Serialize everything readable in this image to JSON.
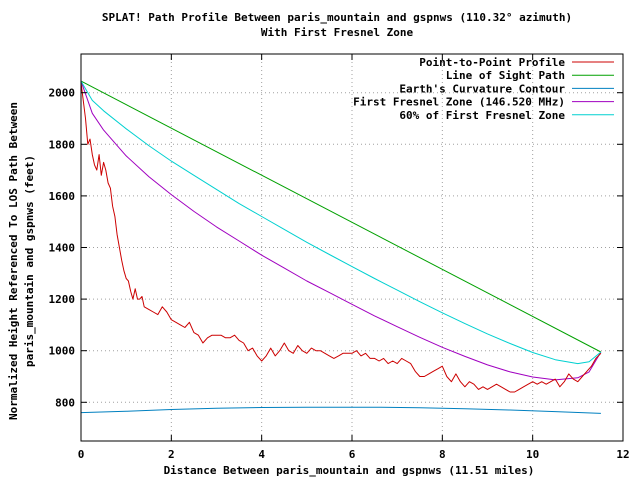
{
  "chart_data": {
    "type": "line",
    "title": "SPLAT! Path Profile Between paris_mountain and gspnws (110.32° azimuth)",
    "subtitle": "With First Fresnel Zone",
    "xlabel": "Distance Between paris_mountain and gspnws (11.51 miles)",
    "ylabel_line1": "Normalized Height Referenced To LOS Path Between",
    "ylabel_line2": "paris_mountain and gspnws (feet)",
    "xlim": [
      0,
      12
    ],
    "ylim": [
      650,
      2150
    ],
    "x_ticks": [
      0,
      2,
      4,
      6,
      8,
      10,
      12
    ],
    "y_ticks": [
      800,
      1000,
      1200,
      1400,
      1600,
      1800,
      2000
    ],
    "grid": true,
    "legend_position": "top-right",
    "series": [
      {
        "name": "Point-to-Point Profile",
        "color": "#cc0000",
        "points": [
          [
            0,
            2040
          ],
          [
            0.1,
            1900
          ],
          [
            0.15,
            1800
          ],
          [
            0.2,
            1820
          ],
          [
            0.25,
            1760
          ],
          [
            0.3,
            1720
          ],
          [
            0.35,
            1700
          ],
          [
            0.4,
            1760
          ],
          [
            0.45,
            1680
          ],
          [
            0.5,
            1730
          ],
          [
            0.55,
            1700
          ],
          [
            0.6,
            1650
          ],
          [
            0.65,
            1630
          ],
          [
            0.7,
            1560
          ],
          [
            0.75,
            1520
          ],
          [
            0.8,
            1450
          ],
          [
            0.85,
            1400
          ],
          [
            0.9,
            1350
          ],
          [
            0.95,
            1310
          ],
          [
            1.0,
            1280
          ],
          [
            1.05,
            1270
          ],
          [
            1.1,
            1230
          ],
          [
            1.15,
            1200
          ],
          [
            1.2,
            1240
          ],
          [
            1.25,
            1200
          ],
          [
            1.3,
            1200
          ],
          [
            1.35,
            1210
          ],
          [
            1.4,
            1170
          ],
          [
            1.5,
            1160
          ],
          [
            1.6,
            1150
          ],
          [
            1.7,
            1140
          ],
          [
            1.8,
            1170
          ],
          [
            1.9,
            1150
          ],
          [
            2.0,
            1120
          ],
          [
            2.1,
            1110
          ],
          [
            2.2,
            1100
          ],
          [
            2.3,
            1090
          ],
          [
            2.4,
            1110
          ],
          [
            2.5,
            1070
          ],
          [
            2.6,
            1060
          ],
          [
            2.7,
            1030
          ],
          [
            2.8,
            1050
          ],
          [
            2.9,
            1060
          ],
          [
            3.0,
            1060
          ],
          [
            3.1,
            1060
          ],
          [
            3.2,
            1050
          ],
          [
            3.3,
            1050
          ],
          [
            3.4,
            1060
          ],
          [
            3.5,
            1040
          ],
          [
            3.6,
            1030
          ],
          [
            3.7,
            1000
          ],
          [
            3.8,
            1010
          ],
          [
            3.9,
            980
          ],
          [
            4.0,
            960
          ],
          [
            4.1,
            980
          ],
          [
            4.2,
            1010
          ],
          [
            4.3,
            980
          ],
          [
            4.4,
            1000
          ],
          [
            4.5,
            1030
          ],
          [
            4.6,
            1000
          ],
          [
            4.7,
            990
          ],
          [
            4.8,
            1020
          ],
          [
            4.9,
            1000
          ],
          [
            5.0,
            990
          ],
          [
            5.1,
            1010
          ],
          [
            5.2,
            1000
          ],
          [
            5.3,
            1000
          ],
          [
            5.4,
            990
          ],
          [
            5.5,
            980
          ],
          [
            5.6,
            970
          ],
          [
            5.7,
            980
          ],
          [
            5.8,
            990
          ],
          [
            5.9,
            990
          ],
          [
            6.0,
            990
          ],
          [
            6.1,
            1000
          ],
          [
            6.2,
            980
          ],
          [
            6.3,
            990
          ],
          [
            6.4,
            970
          ],
          [
            6.5,
            970
          ],
          [
            6.6,
            960
          ],
          [
            6.7,
            970
          ],
          [
            6.8,
            950
          ],
          [
            6.9,
            960
          ],
          [
            7.0,
            950
          ],
          [
            7.1,
            970
          ],
          [
            7.2,
            960
          ],
          [
            7.3,
            950
          ],
          [
            7.4,
            920
          ],
          [
            7.5,
            900
          ],
          [
            7.6,
            900
          ],
          [
            7.7,
            910
          ],
          [
            7.8,
            920
          ],
          [
            7.9,
            930
          ],
          [
            8.0,
            940
          ],
          [
            8.1,
            900
          ],
          [
            8.2,
            880
          ],
          [
            8.3,
            910
          ],
          [
            8.4,
            880
          ],
          [
            8.5,
            860
          ],
          [
            8.6,
            880
          ],
          [
            8.7,
            870
          ],
          [
            8.8,
            850
          ],
          [
            8.9,
            860
          ],
          [
            9.0,
            850
          ],
          [
            9.1,
            860
          ],
          [
            9.2,
            870
          ],
          [
            9.3,
            860
          ],
          [
            9.4,
            850
          ],
          [
            9.5,
            840
          ],
          [
            9.6,
            840
          ],
          [
            9.7,
            850
          ],
          [
            9.8,
            860
          ],
          [
            9.9,
            870
          ],
          [
            10.0,
            880
          ],
          [
            10.1,
            870
          ],
          [
            10.2,
            880
          ],
          [
            10.3,
            870
          ],
          [
            10.4,
            880
          ],
          [
            10.5,
            890
          ],
          [
            10.6,
            860
          ],
          [
            10.7,
            880
          ],
          [
            10.8,
            910
          ],
          [
            10.9,
            890
          ],
          [
            11.0,
            880
          ],
          [
            11.1,
            900
          ],
          [
            11.2,
            920
          ],
          [
            11.3,
            940
          ],
          [
            11.4,
            970
          ],
          [
            11.51,
            990
          ]
        ]
      },
      {
        "name": "Line of Sight Path",
        "color": "#00a000",
        "points": [
          [
            0,
            2045
          ],
          [
            11.51,
            995
          ]
        ]
      },
      {
        "name": "Earth's Curvature Contour",
        "color": "#0080c0",
        "points": [
          [
            0,
            760
          ],
          [
            1,
            765
          ],
          [
            2,
            772
          ],
          [
            3,
            777
          ],
          [
            4,
            780
          ],
          [
            5,
            781
          ],
          [
            5.75,
            781
          ],
          [
            6.5,
            781
          ],
          [
            7.5,
            779
          ],
          [
            8.5,
            775
          ],
          [
            9.5,
            770
          ],
          [
            10.5,
            764
          ],
          [
            11.51,
            757
          ]
        ]
      },
      {
        "name": "First Fresnel Zone (146.520 MHz)",
        "color": "#a000c0",
        "points": [
          [
            0,
            2045
          ],
          [
            0.25,
            1920
          ],
          [
            0.5,
            1855
          ],
          [
            1,
            1755
          ],
          [
            1.5,
            1675
          ],
          [
            2,
            1605
          ],
          [
            2.5,
            1540
          ],
          [
            3,
            1480
          ],
          [
            3.5,
            1425
          ],
          [
            4,
            1370
          ],
          [
            4.5,
            1320
          ],
          [
            5,
            1270
          ],
          [
            5.5,
            1225
          ],
          [
            6,
            1180
          ],
          [
            6.5,
            1135
          ],
          [
            7,
            1093
          ],
          [
            7.5,
            1052
          ],
          [
            8,
            1013
          ],
          [
            8.5,
            978
          ],
          [
            9,
            945
          ],
          [
            9.5,
            918
          ],
          [
            10,
            898
          ],
          [
            10.5,
            887
          ],
          [
            11,
            895
          ],
          [
            11.25,
            918
          ],
          [
            11.51,
            995
          ]
        ]
      },
      {
        "name": "60% of First Fresnel Zone",
        "color": "#00d0d0",
        "points": [
          [
            0,
            2045
          ],
          [
            0.25,
            1970
          ],
          [
            0.5,
            1930
          ],
          [
            1,
            1860
          ],
          [
            1.5,
            1795
          ],
          [
            2,
            1735
          ],
          [
            2.5,
            1680
          ],
          [
            3,
            1625
          ],
          [
            3.5,
            1570
          ],
          [
            4,
            1520
          ],
          [
            4.5,
            1470
          ],
          [
            5,
            1420
          ],
          [
            5.5,
            1373
          ],
          [
            6,
            1326
          ],
          [
            6.5,
            1280
          ],
          [
            7,
            1235
          ],
          [
            7.5,
            1190
          ],
          [
            8,
            1147
          ],
          [
            8.5,
            1105
          ],
          [
            9,
            1065
          ],
          [
            9.5,
            1028
          ],
          [
            10,
            993
          ],
          [
            10.5,
            965
          ],
          [
            11,
            950
          ],
          [
            11.25,
            957
          ],
          [
            11.51,
            995
          ]
        ]
      }
    ]
  }
}
